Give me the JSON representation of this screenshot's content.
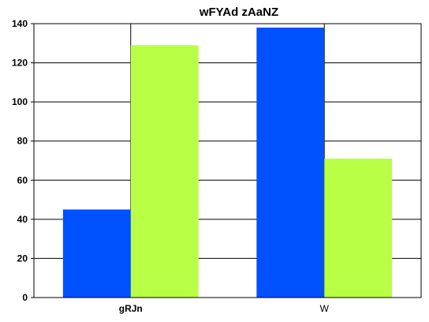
{
  "chart_data": {
    "type": "bar",
    "title": "wFYAd zAaNZ",
    "xlabel": "",
    "ylabel": "",
    "categories": [
      "gRJn",
      "W"
    ],
    "category_styles": [
      "bold",
      "normal"
    ],
    "series": [
      {
        "values": [
          45,
          138
        ],
        "color": "#0051ff"
      },
      {
        "values": [
          129,
          71
        ],
        "color": "#b8ff45"
      }
    ],
    "ylim": [
      0,
      140
    ],
    "yticks": [
      "0",
      "20",
      "40",
      "60",
      "80",
      "100",
      "120",
      "140"
    ],
    "grid": {
      "horizontal": true,
      "vertical_at_category_centers": true
    },
    "legend": "none"
  }
}
